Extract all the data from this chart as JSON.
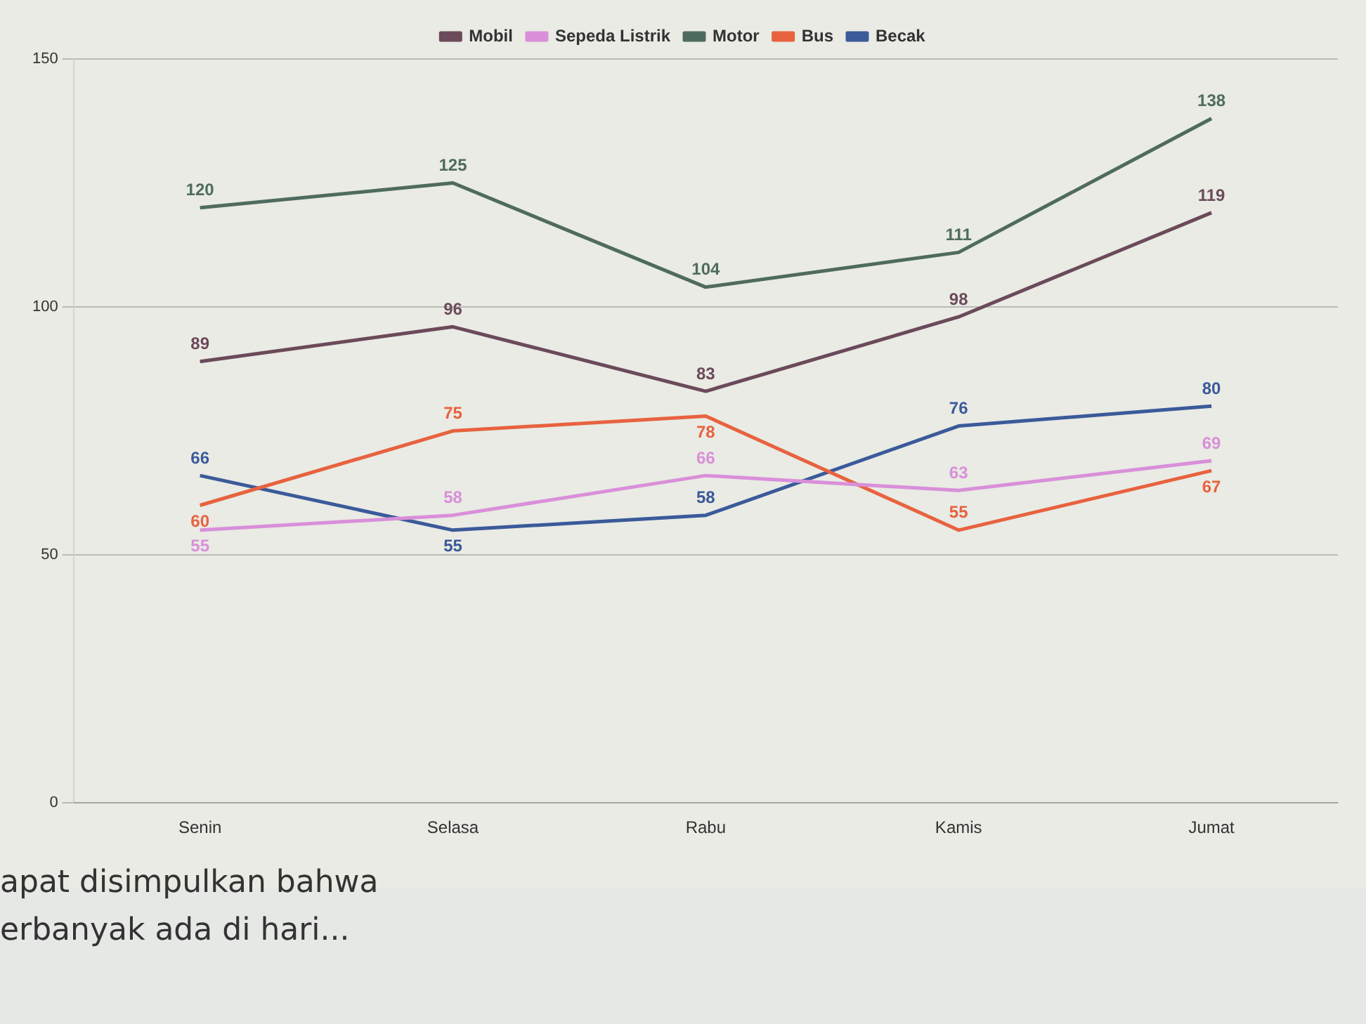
{
  "chart_data": {
    "type": "line",
    "categories": [
      "Senin",
      "Selasa",
      "Rabu",
      "Kamis",
      "Jumat"
    ],
    "series": [
      {
        "name": "Mobil",
        "color": "#6b4a5a",
        "values": [
          89,
          96,
          83,
          98,
          119
        ]
      },
      {
        "name": "Sepeda Listrik",
        "color": "#d98fd9",
        "values": [
          55,
          58,
          66,
          63,
          69
        ]
      },
      {
        "name": "Motor",
        "color": "#4f6b5f",
        "values": [
          120,
          125,
          104,
          111,
          138
        ]
      },
      {
        "name": "Bus",
        "color": "#e8623f",
        "values": [
          60,
          75,
          78,
          55,
          67
        ]
      },
      {
        "name": "Becak",
        "color": "#3b5a9a",
        "values": [
          66,
          55,
          58,
          76,
          80
        ]
      }
    ],
    "ylim": [
      0,
      150
    ],
    "yticks": [
      0,
      50,
      100,
      150
    ],
    "grid": "y",
    "legend": "top",
    "marker": "none",
    "line_style": "solid",
    "data_labels": true,
    "annotations": [
      "apat disimpulkan bahwa",
      "erbanyak ada di hari..."
    ]
  }
}
